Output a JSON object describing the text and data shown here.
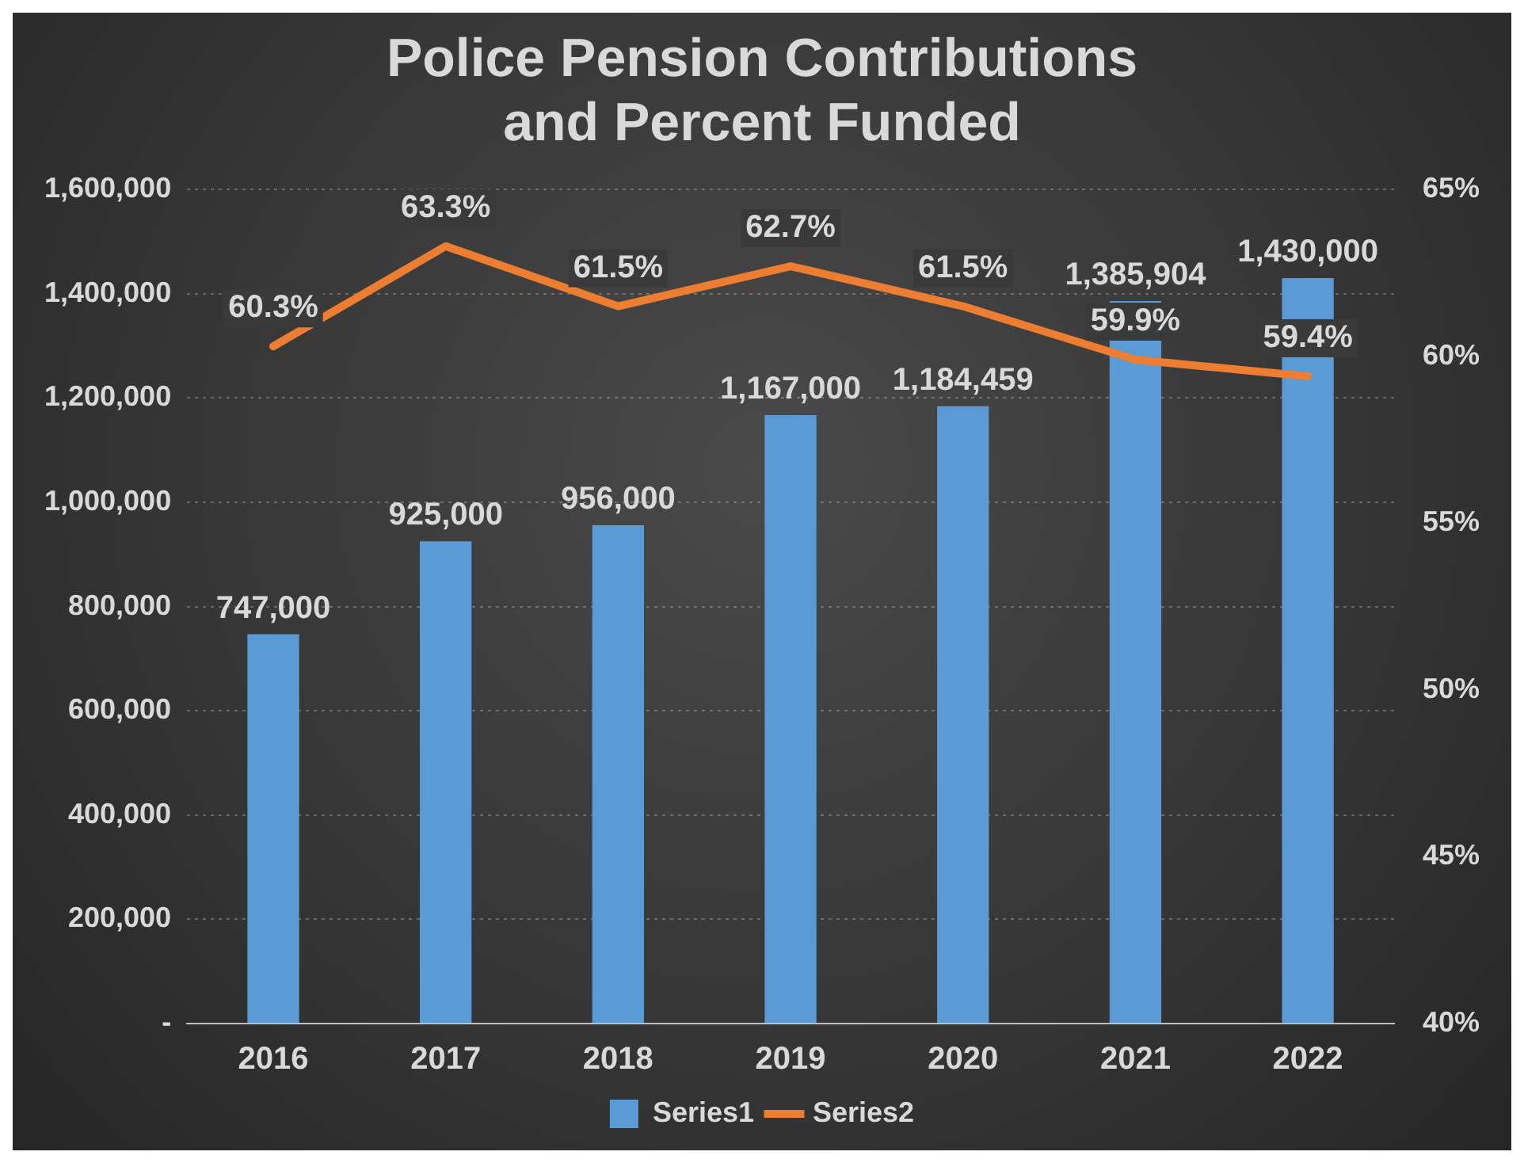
{
  "chart_data": {
    "type": "bar",
    "title": "Police Pension Contributions and Percent Funded",
    "categories": [
      "2016",
      "2017",
      "2018",
      "2019",
      "2020",
      "2021",
      "2022"
    ],
    "series": [
      {
        "name": "Series1",
        "color": "#5b9bd5",
        "values": [
          747000,
          925000,
          956000,
          1167000,
          1184459,
          1385904,
          1430000
        ],
        "value_labels": [
          "747,000",
          "925,000",
          "956,000",
          "1,167,000",
          "1,184,459",
          "1,385,904",
          "1,430,000"
        ]
      },
      {
        "name": "Series2",
        "type": "line",
        "axis": "y2",
        "color": "#ed7d31",
        "values": [
          60.3,
          63.3,
          61.5,
          62.7,
          61.5,
          59.9,
          59.4
        ],
        "value_labels": [
          "60.3%",
          "63.3%",
          "61.5%",
          "62.7%",
          "61.5%",
          "59.9%",
          "59.4%"
        ]
      }
    ],
    "ylim": [
      0,
      1600000
    ],
    "yticks": [
      {
        "value": 0,
        "label": "-"
      },
      {
        "value": 200000,
        "label": "200,000"
      },
      {
        "value": 400000,
        "label": "400,000"
      },
      {
        "value": 600000,
        "label": "600,000"
      },
      {
        "value": 800000,
        "label": "800,000"
      },
      {
        "value": 1000000,
        "label": "1,000,000"
      },
      {
        "value": 1200000,
        "label": "1,200,000"
      },
      {
        "value": 1400000,
        "label": "1,400,000"
      },
      {
        "value": 1600000,
        "label": "1,600,000"
      }
    ],
    "y2lim": [
      40,
      65
    ],
    "y2ticks": [
      {
        "value": 40,
        "label": "40%"
      },
      {
        "value": 45,
        "label": "45%"
      },
      {
        "value": 50,
        "label": "50%"
      },
      {
        "value": 55,
        "label": "55%"
      },
      {
        "value": 60,
        "label": "60%"
      },
      {
        "value": 65,
        "label": "65%"
      }
    ],
    "grid": "y",
    "legend": "bottom",
    "marker": "none"
  }
}
